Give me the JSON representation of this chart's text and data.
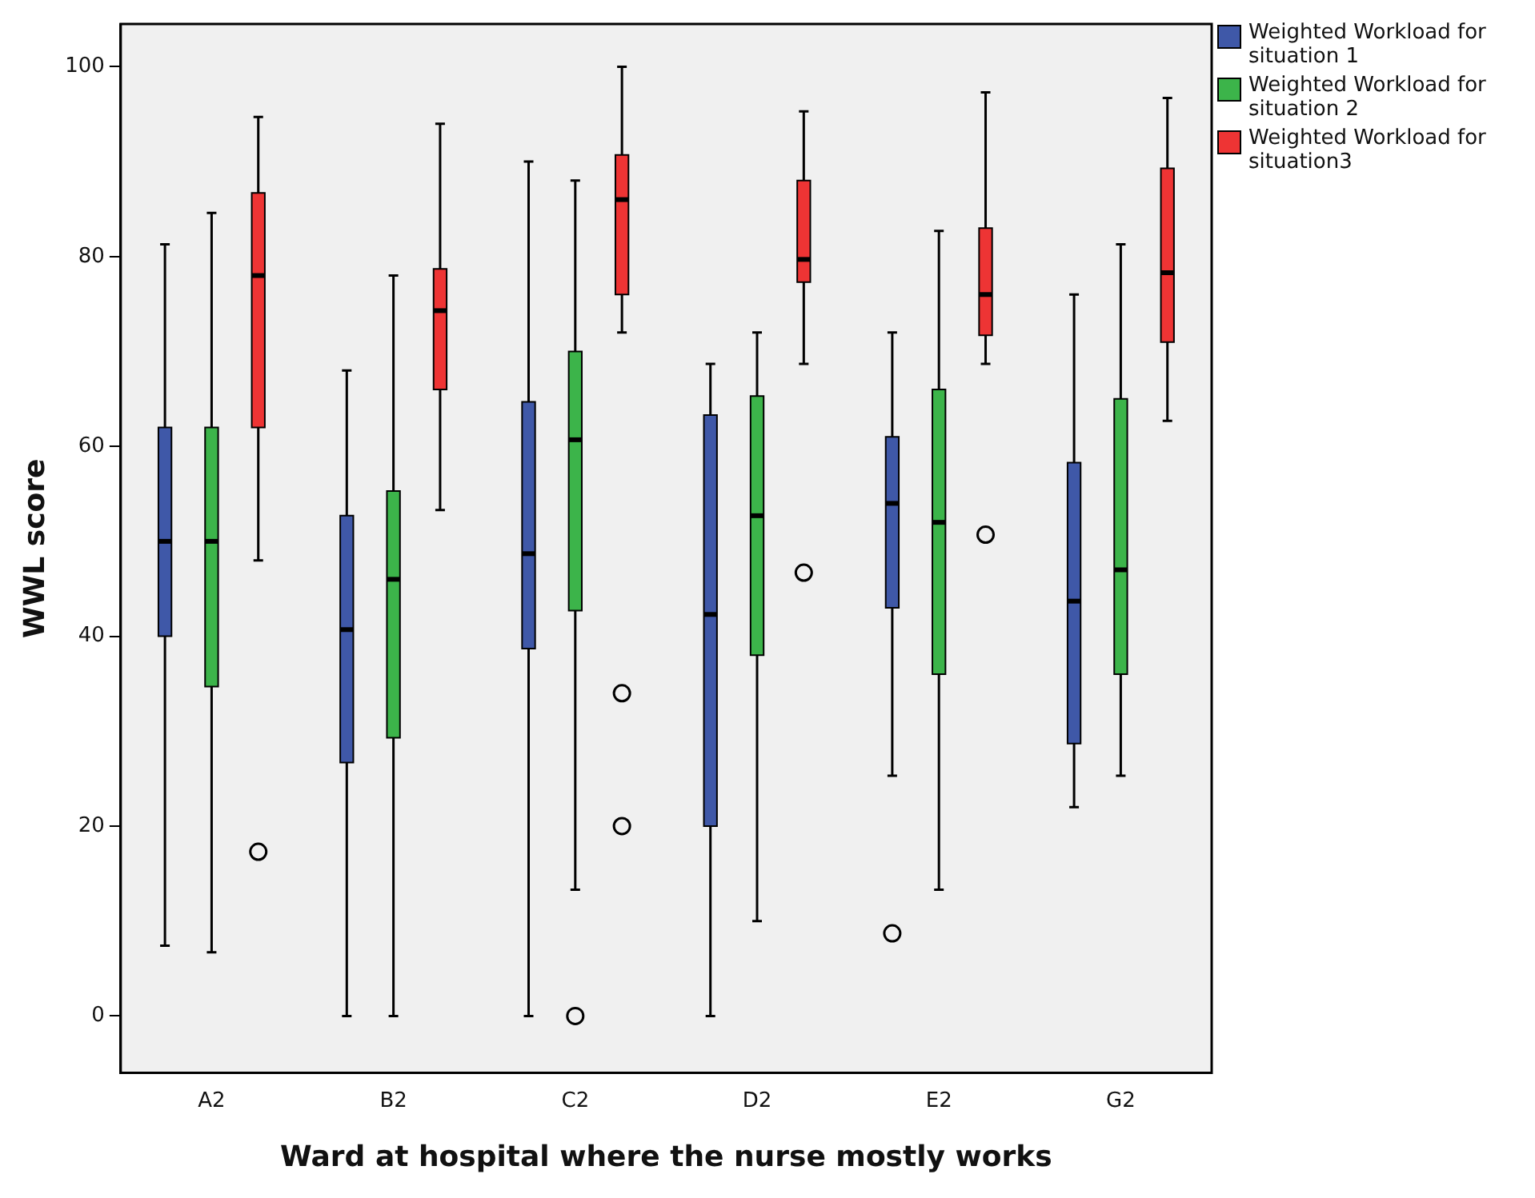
{
  "chart_data": {
    "type": "box",
    "xlabel": "Ward at hospital where the nurse mostly works",
    "ylabel": "WWL score",
    "categories": [
      "A2",
      "B2",
      "C2",
      "D2",
      "E2",
      "G2"
    ],
    "ylim": [
      -6,
      104.5
    ],
    "yticks": [
      0,
      20,
      40,
      60,
      80,
      100
    ],
    "grid": false,
    "legend": "top right",
    "series": [
      {
        "name": "Weighted Workload for situation 1",
        "color": "#3f58a8",
        "boxes": [
          {
            "low": 7.4,
            "q1": 40,
            "median": 50,
            "q3": 62,
            "high": 81.3
          },
          {
            "low": 0,
            "q1": 26.7,
            "median": 40.7,
            "q3": 52.7,
            "high": 68
          },
          {
            "low": 0,
            "q1": 38.7,
            "median": 48.7,
            "q3": 64.7,
            "high": 90
          },
          {
            "low": 0,
            "q1": 20,
            "median": 42.3,
            "q3": 63.3,
            "high": 68.7
          },
          {
            "low": 25.3,
            "q1": 43,
            "median": 54,
            "q3": 61,
            "high": 72,
            "outliers": [
              8.7
            ]
          },
          {
            "low": 22,
            "q1": 28.7,
            "median": 43.7,
            "q3": 58.3,
            "high": 76
          }
        ]
      },
      {
        "name": "Weighted Workload for situation 2",
        "color": "#3cb44a",
        "boxes": [
          {
            "low": 6.7,
            "q1": 34.7,
            "median": 50,
            "q3": 62,
            "high": 84.6
          },
          {
            "low": 0,
            "q1": 29.3,
            "median": 46,
            "q3": 55.3,
            "high": 78
          },
          {
            "low": 13.3,
            "q1": 42.7,
            "median": 60.7,
            "q3": 70,
            "high": 88,
            "outliers": [
              0
            ]
          },
          {
            "low": 10,
            "q1": 38,
            "median": 52.7,
            "q3": 65.3,
            "high": 72
          },
          {
            "low": 13.3,
            "q1": 36,
            "median": 52,
            "q3": 66,
            "high": 82.7
          },
          {
            "low": 25.3,
            "q1": 36,
            "median": 47,
            "q3": 65,
            "high": 81.3
          }
        ]
      },
      {
        "name": "Weighted Workload for situation3",
        "color": "#ee3434",
        "boxes": [
          {
            "low": 48,
            "q1": 62,
            "median": 78,
            "q3": 86.7,
            "high": 94.7,
            "outliers": [
              17.3
            ]
          },
          {
            "low": 53.3,
            "q1": 66,
            "median": 74.3,
            "q3": 78.7,
            "high": 94
          },
          {
            "low": 72,
            "q1": 76,
            "median": 86,
            "q3": 90.7,
            "high": 100,
            "outliers": [
              34,
              20
            ]
          },
          {
            "low": 68.7,
            "q1": 77.3,
            "median": 79.7,
            "q3": 88,
            "high": 95.3,
            "outliers": [
              46.7
            ]
          },
          {
            "low": 68.7,
            "q1": 71.7,
            "median": 76,
            "q3": 83,
            "high": 97.3,
            "outliers": [
              50.7
            ]
          },
          {
            "low": 62.7,
            "q1": 71,
            "median": 78.3,
            "q3": 89.3,
            "high": 96.7
          }
        ]
      }
    ]
  }
}
